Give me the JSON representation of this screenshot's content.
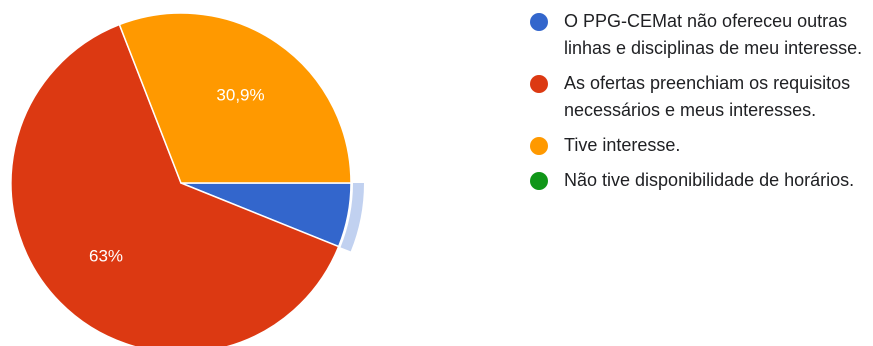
{
  "chart_data": {
    "type": "pie",
    "title": "",
    "slices": [
      {
        "name": "O PPG-CEMat não ofereceu outras linhas e disciplinas de meu interesse.",
        "value": 6.1,
        "color": "#3366cc",
        "label": ""
      },
      {
        "name": "As ofertas preenchiam os requisitos necessários e meus interesses.",
        "value": 63,
        "color": "#dc3912",
        "label": "63%"
      },
      {
        "name": "Tive interesse.",
        "value": 30.9,
        "color": "#ff9900",
        "label": "30,9%"
      },
      {
        "name": "Não tive disponibilidade de horários.",
        "value": 0,
        "color": "#109618",
        "label": ""
      }
    ],
    "highlighted_slice": 0,
    "legend_position": "right"
  }
}
